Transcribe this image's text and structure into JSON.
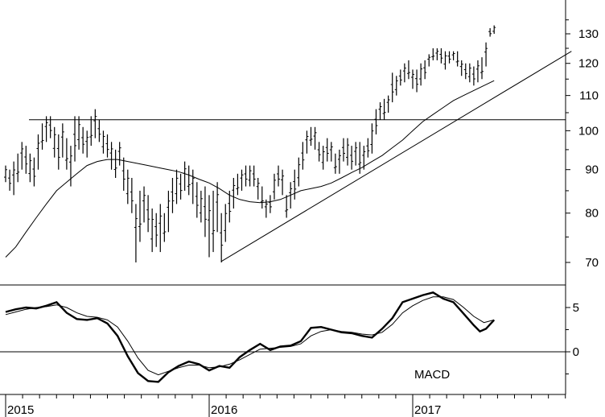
{
  "chart_data": [
    {
      "type": "ohlc",
      "panel": "price",
      "x_ticks": [
        "2015",
        "2016",
        "2017"
      ],
      "y_ticks": [
        70,
        80,
        90,
        100,
        110,
        120,
        130
      ],
      "ylim": [
        65,
        145
      ],
      "log_scale": true,
      "weekly_bars": [
        [
          2015.0,
          87,
          91
        ],
        [
          2015.02,
          85,
          90
        ],
        [
          2015.04,
          84,
          92
        ],
        [
          2015.06,
          87,
          94
        ],
        [
          2015.08,
          90,
          97
        ],
        [
          2015.1,
          89,
          96
        ],
        [
          2015.12,
          87,
          94
        ],
        [
          2015.14,
          86,
          93
        ],
        [
          2015.16,
          90,
          99
        ],
        [
          2015.18,
          95,
          102
        ],
        [
          2015.2,
          97,
          104
        ],
        [
          2015.22,
          98,
          104
        ],
        [
          2015.24,
          93,
          101
        ],
        [
          2015.26,
          90,
          99
        ],
        [
          2015.28,
          93,
          102
        ],
        [
          2015.3,
          90,
          98
        ],
        [
          2015.32,
          86,
          96
        ],
        [
          2015.34,
          92,
          104
        ],
        [
          2015.36,
          95,
          104
        ],
        [
          2015.38,
          94,
          101
        ],
        [
          2015.4,
          93,
          100
        ],
        [
          2015.42,
          96,
          104
        ],
        [
          2015.44,
          98,
          106
        ],
        [
          2015.46,
          97,
          103
        ],
        [
          2015.48,
          94,
          100
        ],
        [
          2015.5,
          93,
          99
        ],
        [
          2015.52,
          90,
          97
        ],
        [
          2015.54,
          88,
          95
        ],
        [
          2015.56,
          91,
          97
        ],
        [
          2015.58,
          85,
          93
        ],
        [
          2015.6,
          82,
          90
        ],
        [
          2015.62,
          80,
          88
        ],
        [
          2015.64,
          70,
          82
        ],
        [
          2015.66,
          74,
          85
        ],
        [
          2015.68,
          78,
          86
        ],
        [
          2015.7,
          76,
          84
        ],
        [
          2015.72,
          72,
          81
        ],
        [
          2015.74,
          73,
          80
        ],
        [
          2015.76,
          72,
          82
        ],
        [
          2015.78,
          74,
          80
        ],
        [
          2015.8,
          76,
          85
        ],
        [
          2015.82,
          80,
          88
        ],
        [
          2015.84,
          82,
          90
        ],
        [
          2015.86,
          83,
          89
        ],
        [
          2015.88,
          85,
          92
        ],
        [
          2015.9,
          84,
          91
        ],
        [
          2015.92,
          82,
          90
        ],
        [
          2015.94,
          79,
          87
        ],
        [
          2015.96,
          78,
          85
        ],
        [
          2015.98,
          75,
          86
        ],
        [
          2016.0,
          71,
          84
        ],
        [
          2016.02,
          72,
          85
        ],
        [
          2016.04,
          76,
          87
        ],
        [
          2016.06,
          70,
          80
        ],
        [
          2016.08,
          74,
          82
        ],
        [
          2016.1,
          78,
          85
        ],
        [
          2016.12,
          81,
          88
        ],
        [
          2016.14,
          84,
          89
        ],
        [
          2016.16,
          85,
          90
        ],
        [
          2016.18,
          86,
          91
        ],
        [
          2016.2,
          86,
          91
        ],
        [
          2016.22,
          86,
          91
        ],
        [
          2016.24,
          83,
          88
        ],
        [
          2016.26,
          81,
          86
        ],
        [
          2016.28,
          79,
          83
        ],
        [
          2016.3,
          80,
          84
        ],
        [
          2016.32,
          83,
          89
        ],
        [
          2016.34,
          86,
          91
        ],
        [
          2016.36,
          84,
          90
        ],
        [
          2016.38,
          79,
          84
        ],
        [
          2016.4,
          81,
          87
        ],
        [
          2016.42,
          83,
          90
        ],
        [
          2016.44,
          86,
          93
        ],
        [
          2016.46,
          90,
          97
        ],
        [
          2016.48,
          94,
          100
        ],
        [
          2016.5,
          96,
          101
        ],
        [
          2016.52,
          95,
          101
        ],
        [
          2016.54,
          92,
          97
        ],
        [
          2016.56,
          90,
          96
        ],
        [
          2016.58,
          92,
          98
        ],
        [
          2016.6,
          92,
          97
        ],
        [
          2016.62,
          89,
          94
        ],
        [
          2016.64,
          89,
          95
        ],
        [
          2016.66,
          92,
          98
        ],
        [
          2016.68,
          91,
          98
        ],
        [
          2016.7,
          90,
          96
        ],
        [
          2016.72,
          91,
          97
        ],
        [
          2016.74,
          89,
          97
        ],
        [
          2016.76,
          90,
          96
        ],
        [
          2016.78,
          93,
          98
        ],
        [
          2016.8,
          94,
          102
        ],
        [
          2016.82,
          99,
          106
        ],
        [
          2016.84,
          103,
          108
        ],
        [
          2016.86,
          103,
          109
        ],
        [
          2016.88,
          105,
          110
        ],
        [
          2016.9,
          108,
          117
        ],
        [
          2016.92,
          110,
          116
        ],
        [
          2016.94,
          113,
          118
        ],
        [
          2016.96,
          114,
          120
        ],
        [
          2016.98,
          115,
          121
        ],
        [
          2017.0,
          112,
          118
        ],
        [
          2017.02,
          111,
          118
        ],
        [
          2017.04,
          113,
          120
        ],
        [
          2017.06,
          115,
          121
        ],
        [
          2017.08,
          119,
          123
        ],
        [
          2017.1,
          121,
          125
        ],
        [
          2017.12,
          121,
          125
        ],
        [
          2017.14,
          120,
          125
        ],
        [
          2017.16,
          118,
          124
        ],
        [
          2017.18,
          120,
          124
        ],
        [
          2017.2,
          121,
          124
        ],
        [
          2017.22,
          119,
          124
        ],
        [
          2017.24,
          116,
          121
        ],
        [
          2017.26,
          115,
          120
        ],
        [
          2017.28,
          114,
          120
        ],
        [
          2017.3,
          113,
          119
        ],
        [
          2017.32,
          114,
          121
        ],
        [
          2017.34,
          115,
          122
        ],
        [
          2017.36,
          119,
          127
        ],
        [
          2017.38,
          129,
          132
        ],
        [
          2017.4,
          130,
          133
        ]
      ],
      "moving_average": [
        [
          2015.0,
          71
        ],
        [
          2015.05,
          73
        ],
        [
          2015.1,
          76
        ],
        [
          2015.15,
          79
        ],
        [
          2015.2,
          82
        ],
        [
          2015.25,
          85
        ],
        [
          2015.3,
          87
        ],
        [
          2015.35,
          89
        ],
        [
          2015.4,
          91
        ],
        [
          2015.45,
          92
        ],
        [
          2015.5,
          92.5
        ],
        [
          2015.55,
          92.5
        ],
        [
          2015.6,
          92
        ],
        [
          2015.65,
          91.5
        ],
        [
          2015.7,
          91
        ],
        [
          2015.75,
          90.5
        ],
        [
          2015.8,
          90
        ],
        [
          2015.85,
          89.5
        ],
        [
          2015.9,
          88.7
        ],
        [
          2015.95,
          87.7
        ],
        [
          2016.0,
          86.8
        ],
        [
          2016.05,
          85.5
        ],
        [
          2016.1,
          84
        ],
        [
          2016.15,
          83
        ],
        [
          2016.2,
          82.5
        ],
        [
          2016.25,
          82.3
        ],
        [
          2016.3,
          82.5
        ],
        [
          2016.35,
          83
        ],
        [
          2016.4,
          84
        ],
        [
          2016.45,
          85
        ],
        [
          2016.5,
          85.5
        ],
        [
          2016.55,
          86
        ],
        [
          2016.6,
          86.8
        ],
        [
          2016.65,
          88
        ],
        [
          2016.7,
          89.3
        ],
        [
          2016.75,
          90.5
        ],
        [
          2016.8,
          92
        ],
        [
          2016.85,
          93.5
        ],
        [
          2016.9,
          95.5
        ],
        [
          2016.95,
          97.5
        ],
        [
          2017.0,
          100
        ],
        [
          2017.05,
          102.5
        ],
        [
          2017.1,
          104.5
        ],
        [
          2017.15,
          106.5
        ],
        [
          2017.2,
          108.5
        ],
        [
          2017.25,
          110
        ],
        [
          2017.3,
          111.5
        ],
        [
          2017.35,
          113
        ],
        [
          2017.4,
          114.5
        ]
      ],
      "trendline_horizontal": 103,
      "trendline_rising": [
        [
          2016.06,
          70.2
        ],
        [
          2017.78,
          124
        ]
      ]
    },
    {
      "type": "line",
      "panel": "indicator",
      "label": "MACD",
      "y_ticks": [
        0,
        5
      ],
      "ylim": [
        -4,
        7.5
      ],
      "series": [
        {
          "values": [
            [
              2015.0,
              4.5
            ],
            [
              2015.05,
              4.8
            ],
            [
              2015.1,
              5.0
            ],
            [
              2015.15,
              4.9
            ],
            [
              2015.2,
              5.2
            ],
            [
              2015.25,
              5.6
            ],
            [
              2015.3,
              4.4
            ],
            [
              2015.35,
              3.7
            ],
            [
              2015.4,
              3.6
            ],
            [
              2015.45,
              3.8
            ],
            [
              2015.5,
              3.2
            ],
            [
              2015.55,
              1.8
            ],
            [
              2015.6,
              -0.5
            ],
            [
              2015.65,
              -2.4
            ],
            [
              2015.7,
              -3.3
            ],
            [
              2015.75,
              -3.4
            ],
            [
              2015.8,
              -2.3
            ],
            [
              2015.85,
              -1.6
            ],
            [
              2015.9,
              -1.1
            ],
            [
              2015.95,
              -1.4
            ],
            [
              2016.0,
              -2.1
            ],
            [
              2016.05,
              -1.6
            ],
            [
              2016.1,
              -1.8
            ],
            [
              2016.15,
              -0.6
            ],
            [
              2016.2,
              0.2
            ],
            [
              2016.25,
              0.9
            ],
            [
              2016.3,
              0.2
            ],
            [
              2016.35,
              0.6
            ],
            [
              2016.4,
              0.7
            ],
            [
              2016.45,
              1.2
            ],
            [
              2016.5,
              2.7
            ],
            [
              2016.55,
              2.8
            ],
            [
              2016.6,
              2.5
            ],
            [
              2016.65,
              2.2
            ],
            [
              2016.7,
              2.1
            ],
            [
              2016.75,
              1.8
            ],
            [
              2016.8,
              1.6
            ],
            [
              2016.85,
              2.6
            ],
            [
              2016.9,
              3.8
            ],
            [
              2016.95,
              5.6
            ],
            [
              2017.0,
              6.0
            ],
            [
              2017.05,
              6.4
            ],
            [
              2017.1,
              6.7
            ],
            [
              2017.15,
              6.0
            ],
            [
              2017.2,
              5.6
            ],
            [
              2017.25,
              4.3
            ],
            [
              2017.3,
              3.0
            ],
            [
              2017.33,
              2.3
            ],
            [
              2017.36,
              2.6
            ],
            [
              2017.4,
              3.6
            ]
          ]
        },
        {
          "values": [
            [
              2015.0,
              4.2
            ],
            [
              2015.05,
              4.5
            ],
            [
              2015.1,
              4.8
            ],
            [
              2015.15,
              5.0
            ],
            [
              2015.2,
              5.1
            ],
            [
              2015.25,
              5.3
            ],
            [
              2015.3,
              5.0
            ],
            [
              2015.35,
              4.4
            ],
            [
              2015.4,
              4.0
            ],
            [
              2015.45,
              3.9
            ],
            [
              2015.5,
              3.6
            ],
            [
              2015.55,
              2.8
            ],
            [
              2015.6,
              1.2
            ],
            [
              2015.65,
              -0.7
            ],
            [
              2015.7,
              -2.1
            ],
            [
              2015.75,
              -2.6
            ],
            [
              2015.8,
              -2.2
            ],
            [
              2015.85,
              -1.8
            ],
            [
              2015.9,
              -1.5
            ],
            [
              2015.95,
              -1.5
            ],
            [
              2016.0,
              -1.8
            ],
            [
              2016.05,
              -1.7
            ],
            [
              2016.1,
              -1.4
            ],
            [
              2016.15,
              -0.9
            ],
            [
              2016.2,
              -0.3
            ],
            [
              2016.25,
              0.3
            ],
            [
              2016.3,
              0.4
            ],
            [
              2016.35,
              0.5
            ],
            [
              2016.4,
              0.6
            ],
            [
              2016.45,
              0.9
            ],
            [
              2016.5,
              1.8
            ],
            [
              2016.55,
              2.3
            ],
            [
              2016.6,
              2.5
            ],
            [
              2016.65,
              2.3
            ],
            [
              2016.7,
              2.2
            ],
            [
              2016.75,
              2.0
            ],
            [
              2016.8,
              1.9
            ],
            [
              2016.85,
              2.2
            ],
            [
              2016.9,
              3.1
            ],
            [
              2016.95,
              4.4
            ],
            [
              2017.0,
              5.2
            ],
            [
              2017.05,
              5.8
            ],
            [
              2017.1,
              6.2
            ],
            [
              2017.15,
              6.2
            ],
            [
              2017.2,
              5.9
            ],
            [
              2017.25,
              5.0
            ],
            [
              2017.3,
              4.0
            ],
            [
              2017.35,
              3.3
            ],
            [
              2017.4,
              3.6
            ]
          ]
        }
      ]
    }
  ]
}
